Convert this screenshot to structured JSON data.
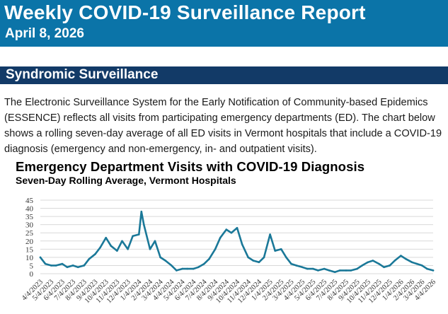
{
  "header": {
    "title": "Weekly COVID-19 Surveillance Report",
    "date": "April 8, 2026"
  },
  "section": {
    "title": "Syndromic Surveillance",
    "body": "The Electronic Surveillance System for the Early Notification of Community-based Epidemics (ESSENCE) reflects all visits from participating emergency departments (ED). The chart below shows a rolling seven-day average of all ED visits in Vermont hospitals that include a COVID-19 diagnosis (emergency and non-emergency, in- and outpatient visits)."
  },
  "colors": {
    "banner": "#0b74a8",
    "section_bar": "#123a67",
    "line": "#1a7898",
    "grid": "#d9d9d9"
  },
  "chart_data": {
    "type": "line",
    "title": "Emergency Department Visits with COVID-19 Diagnosis",
    "subtitle": "Seven-Day Rolling Average, Vermont Hospitals",
    "xlabel": "",
    "ylabel": "",
    "ylim": [
      0,
      45
    ],
    "yticks": [
      0,
      5,
      10,
      15,
      20,
      25,
      30,
      35,
      40,
      45
    ],
    "grid": true,
    "legend": "none",
    "x_ticks": [
      "4/4/2023",
      "5/4/2023",
      "6/4/2023",
      "7/4/2023",
      "8/4/2023",
      "9/4/2023",
      "10/4/2023",
      "11/4/2023",
      "12/4/2023",
      "1/4/2024",
      "2/4/2024",
      "3/4/2024",
      "4/4/2024",
      "5/4/2024",
      "6/4/2024",
      "7/4/2024",
      "8/4/2024",
      "9/4/2024",
      "10/4/2024",
      "11/4/2024",
      "12/4/2024",
      "1/4/2025",
      "2/4/2025",
      "3/4/2025",
      "4/4/2025",
      "5/4/2025",
      "6/4/2025",
      "7/4/2025",
      "8/4/2025",
      "9/4/2025",
      "10/4/2025",
      "11/4/2025",
      "12/4/2025",
      "1/4/2026",
      "2/4/2026",
      "3/4/2026",
      "4/4/2026"
    ],
    "series": [
      {
        "x": [
          "4/4/2023",
          "4/18/2023",
          "5/4/2023",
          "5/18/2023",
          "6/4/2023",
          "6/18/2023",
          "7/4/2023",
          "7/18/2023",
          "8/4/2023",
          "8/18/2023",
          "9/4/2023",
          "9/18/2023",
          "10/4/2023",
          "10/18/2023",
          "11/4/2023",
          "11/18/2023",
          "12/4/2023",
          "12/18/2023",
          "1/4/2024",
          "1/11/2024",
          "1/18/2024",
          "2/4/2024",
          "2/18/2024",
          "3/4/2024",
          "3/18/2024",
          "4/4/2024",
          "4/18/2024",
          "5/4/2024",
          "5/18/2024",
          "6/4/2024",
          "6/18/2024",
          "7/4/2024",
          "7/18/2024",
          "8/4/2024",
          "8/18/2024",
          "9/4/2024",
          "9/18/2024",
          "10/4/2024",
          "10/18/2024",
          "11/4/2024",
          "11/18/2024",
          "12/4/2024",
          "12/18/2024",
          "1/4/2025",
          "1/18/2025",
          "2/4/2025",
          "2/18/2025",
          "3/4/2025",
          "3/18/2025",
          "4/4/2025",
          "4/18/2025",
          "5/4/2025",
          "5/18/2025",
          "6/4/2025",
          "6/18/2025",
          "7/4/2025",
          "7/18/2025",
          "8/4/2025",
          "8/18/2025",
          "9/4/2025",
          "9/18/2025",
          "10/4/2025",
          "10/18/2025",
          "11/4/2025",
          "11/18/2025",
          "12/4/2025",
          "12/18/2025",
          "1/4/2026",
          "1/18/2026",
          "2/4/2026",
          "2/18/2026",
          "3/4/2026",
          "3/18/2026",
          "4/4/2026"
        ],
        "values": [
          10,
          6,
          5,
          5,
          6,
          4,
          5,
          4,
          5,
          9,
          12,
          16,
          22,
          17,
          14,
          20,
          15,
          23,
          24,
          38,
          30,
          15,
          20,
          10,
          8,
          5,
          2,
          3,
          3,
          3,
          4,
          6,
          9,
          15,
          22,
          27,
          25,
          28,
          18,
          10,
          8,
          7,
          10,
          24,
          14,
          15,
          10,
          6,
          5,
          4,
          3,
          3,
          2,
          3,
          2,
          1,
          2,
          2,
          2,
          3,
          5,
          7,
          8,
          6,
          4,
          5,
          8,
          11,
          9,
          7,
          6,
          5,
          3,
          2
        ]
      }
    ]
  }
}
